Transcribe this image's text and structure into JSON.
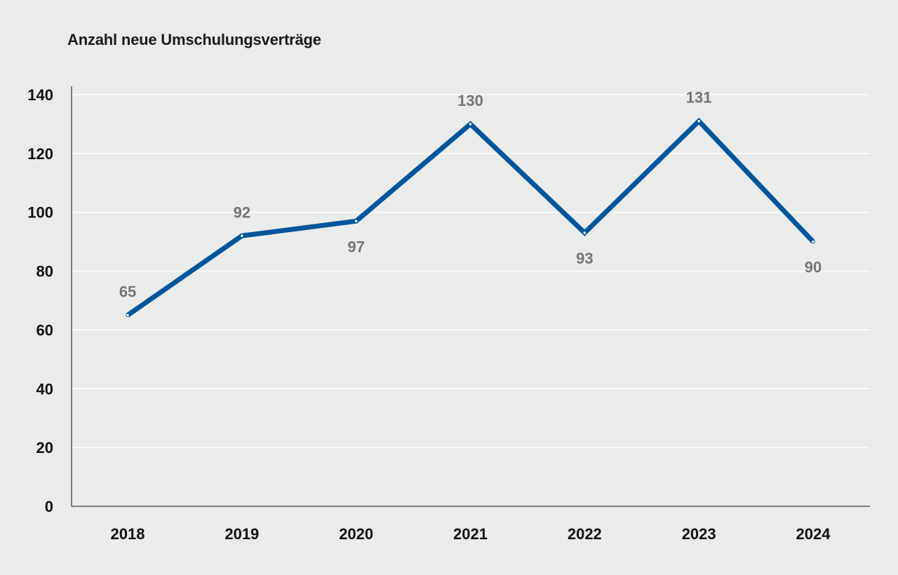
{
  "chart_data": {
    "type": "line",
    "title": "Anzahl neue Umschulungsverträge",
    "categories": [
      "2018",
      "2019",
      "2020",
      "2021",
      "2022",
      "2023",
      "2024"
    ],
    "series": [
      {
        "values": [
          65,
          92,
          97,
          130,
          93,
          131,
          90
        ],
        "color": "#00569c",
        "data_labels": [
          "65",
          "92",
          "97",
          "130",
          "93",
          "131",
          "90"
        ],
        "label_positions": [
          "above",
          "above",
          "below",
          "above",
          "below",
          "above",
          "below"
        ]
      }
    ],
    "ylim": [
      0,
      140
    ],
    "yticks": [
      0,
      20,
      40,
      60,
      80,
      100,
      120,
      140
    ],
    "grid": true,
    "xlabel": "",
    "ylabel": ""
  },
  "colors": {
    "background": "#eaeceb",
    "gridline": "#ffffff",
    "axis": "#555555",
    "data_label": "#747474",
    "line": "#00569c"
  }
}
